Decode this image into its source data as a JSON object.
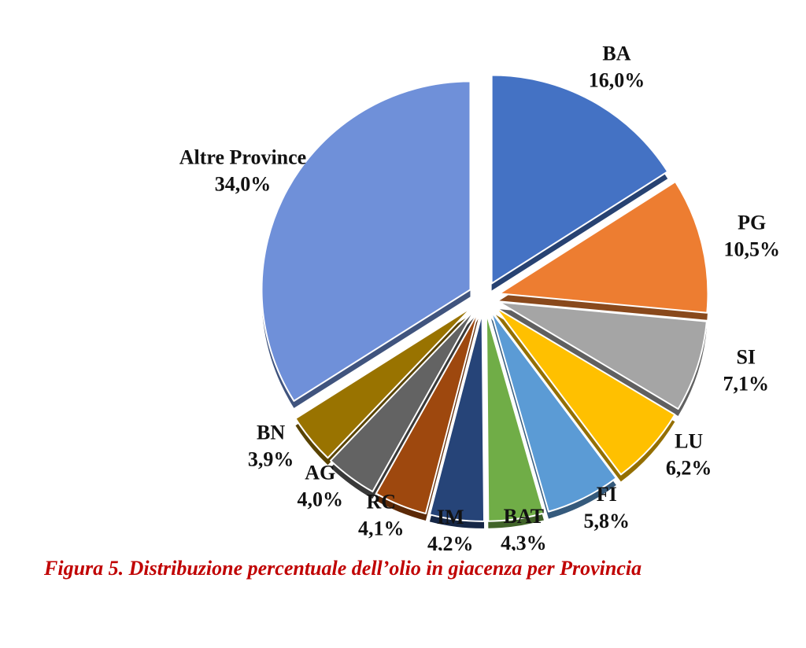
{
  "figure": {
    "caption": "Figura 5. Distribuzione percentuale dell’olio in giacenza per Provincia",
    "caption_color": "#C00000",
    "background_color": "#FFFFFF",
    "label_text_color": "#111111"
  },
  "chart_data": {
    "type": "pie",
    "title": "",
    "unit": "percent",
    "decimal_separator": ",",
    "start_angle_deg": 0,
    "direction": "clockwise",
    "exploded": true,
    "effect": "3d-exploded",
    "legend": "none",
    "labels_position": "outside",
    "slices": [
      {
        "label": "BA",
        "value": 16.0,
        "display": "16,0%",
        "color": "#4472C4"
      },
      {
        "label": "PG",
        "value": 10.5,
        "display": "10,5%",
        "color": "#ED7D31"
      },
      {
        "label": "SI",
        "value": 7.1,
        "display": "7,1%",
        "color": "#A5A5A5"
      },
      {
        "label": "LU",
        "value": 6.2,
        "display": "6,2%",
        "color": "#FFC000"
      },
      {
        "label": "FI",
        "value": 5.8,
        "display": "5,8%",
        "color": "#5B9BD5"
      },
      {
        "label": "BAT",
        "value": 4.3,
        "display": "4,3%",
        "color": "#70AD47"
      },
      {
        "label": "IM",
        "value": 4.2,
        "display": "4,2%",
        "color": "#264478"
      },
      {
        "label": "RC",
        "value": 4.1,
        "display": "4,1%",
        "color": "#9E480E"
      },
      {
        "label": "AG",
        "value": 4.0,
        "display": "4,0%",
        "color": "#636363"
      },
      {
        "label": "BN",
        "value": 3.9,
        "display": "3,9%",
        "color": "#997300"
      },
      {
        "label": "Altre Province",
        "value": 34.0,
        "display": "34,0%",
        "color": "#6F90D9"
      }
    ]
  }
}
